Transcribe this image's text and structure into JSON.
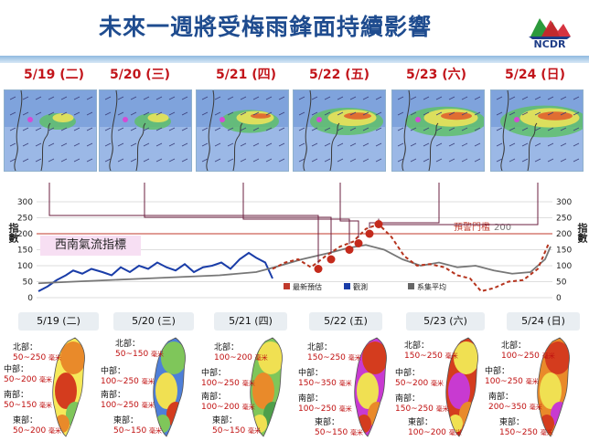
{
  "title": "未來一週將受梅雨鋒面持續影響",
  "logo": {
    "text": "NCDR",
    "colors": [
      "#2c9a3c",
      "#d21e2b",
      "#1d3c87"
    ]
  },
  "days_top": [
    "5/19 (二)",
    "5/20 (三)",
    "5/21 (四)",
    "5/22 (五)",
    "5/23 (六)",
    "5/24 (日)"
  ],
  "days_bottom": [
    "5/19 (二)",
    "5/20 (三)",
    "5/21 (四)",
    "5/22 (五)",
    "5/23 (六)",
    "5/24 (日)"
  ],
  "maps": [
    {
      "name": "5/19",
      "intensity": 0.25
    },
    {
      "name": "5/20",
      "intensity": 0.25
    },
    {
      "name": "5/21",
      "intensity": 0.55
    },
    {
      "name": "5/22",
      "intensity": 0.75
    },
    {
      "name": "5/23",
      "intensity": 0.85
    },
    {
      "name": "5/24",
      "intensity": 0.95
    }
  ],
  "chart": {
    "left_axis_label": "指數",
    "right_axis_label": "指數",
    "y_ticks": [
      "0",
      "50",
      "100",
      "150",
      "200",
      "250",
      "300"
    ],
    "index_name": "西南氣流指標",
    "warning_label": "預警門檻",
    "warning_value": "200",
    "legend": [
      {
        "label": "最新預估",
        "color": "#c0392b"
      },
      {
        "label": "觀測",
        "color": "#1a3da8"
      },
      {
        "label": "系集平均",
        "color": "#666666"
      }
    ],
    "colors": {
      "observed": "#1a3da8",
      "forecast": "#b5331d",
      "ensemble": "#777777",
      "warning": "#c0392b",
      "arrow": "#6b1f3f"
    }
  },
  "rain": [
    {
      "regions": [
        {
          "name": "北部：",
          "value": "50~250",
          "unit": "毫米"
        },
        {
          "name": "中部：",
          "value": "50~200",
          "unit": "毫米"
        },
        {
          "name": "南部：",
          "value": "50~150",
          "unit": "毫米"
        },
        {
          "name": "東部：",
          "value": "50~200",
          "unit": "毫米"
        }
      ]
    },
    {
      "regions": [
        {
          "name": "北部：",
          "value": "50~150",
          "unit": "毫米"
        },
        {
          "name": "中部：",
          "value": "100~250",
          "unit": "毫米"
        },
        {
          "name": "南部：",
          "value": "100~250",
          "unit": "毫米"
        },
        {
          "name": "東部：",
          "value": "50~150",
          "unit": "毫米"
        }
      ]
    },
    {
      "regions": [
        {
          "name": "北部：",
          "value": "100~200",
          "unit": "毫米"
        },
        {
          "name": "中部：",
          "value": "100~250",
          "unit": "毫米"
        },
        {
          "name": "南部：",
          "value": "100~200",
          "unit": "毫米"
        },
        {
          "name": "東部：",
          "value": "50~150",
          "unit": "毫米"
        }
      ]
    },
    {
      "regions": [
        {
          "name": "北部：",
          "value": "150~250",
          "unit": "毫米"
        },
        {
          "name": "中部：",
          "value": "150~350",
          "unit": "毫米"
        },
        {
          "name": "南部：",
          "value": "100~250",
          "unit": "毫米"
        },
        {
          "name": "東部：",
          "value": "50~150",
          "unit": "毫米"
        }
      ]
    },
    {
      "regions": [
        {
          "name": "北部：",
          "value": "150~250",
          "unit": "毫米"
        },
        {
          "name": "中部：",
          "value": "50~200",
          "unit": "毫米"
        },
        {
          "name": "南部：",
          "value": "150~250",
          "unit": "毫米"
        },
        {
          "name": "東部：",
          "value": "100~200",
          "unit": "毫米"
        }
      ]
    },
    {
      "regions": [
        {
          "name": "北部：",
          "value": "100~250",
          "unit": "毫米"
        },
        {
          "name": "中部：",
          "value": "100~250",
          "unit": "毫米"
        },
        {
          "name": "南部：",
          "value": "200~350",
          "unit": "毫米"
        },
        {
          "name": "東部：",
          "value": "150~250",
          "unit": "毫米"
        }
      ]
    }
  ]
}
